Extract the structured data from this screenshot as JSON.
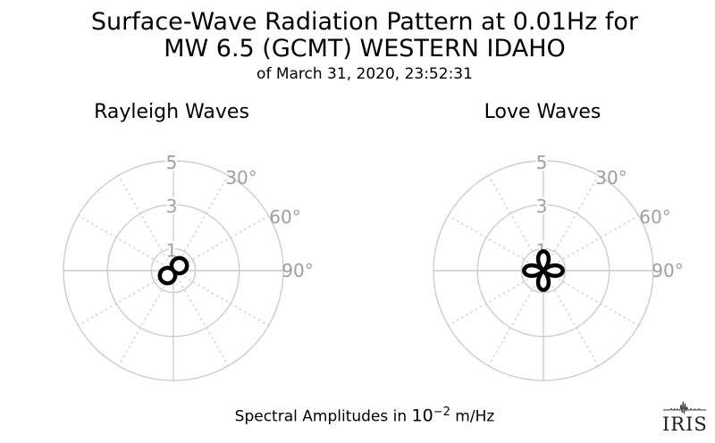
{
  "title": {
    "line1": "Surface-Wave Radiation Pattern at 0.01Hz for",
    "line2": "MW 6.5 (GCMT) WESTERN IDAHO",
    "subtitle": "of March 31, 2020, 23:52:31"
  },
  "caption": {
    "prefix": "Spectral Amplitudes in ",
    "base": "10",
    "exponent": "−2",
    "suffix": " m/Hz"
  },
  "logo": {
    "text": "IRIS"
  },
  "colors": {
    "grid": "#cccccc",
    "axis_labels": "#9e9e9e",
    "pattern": "#000000",
    "text": "#000000",
    "logo": "#1c1c1c"
  },
  "chart_data": [
    {
      "type": "polar",
      "title": "Rayleigh Waves",
      "r_ticks": [
        1,
        3,
        5
      ],
      "r_tick_labels": [
        "1",
        "3",
        "5"
      ],
      "r_max": 5,
      "angle_ticks_deg": [
        30,
        60,
        90
      ],
      "angle_tick_labels": [
        "30°",
        "60°",
        "90°"
      ],
      "spoke_interval_deg": 30,
      "grid": "on",
      "pattern": {
        "shape": "rose",
        "lobes": 2,
        "lobe_azimuth_deg": 50,
        "peak_amplitude": 0.7,
        "amplitude_units": "10^-2 m/Hz"
      }
    },
    {
      "type": "polar",
      "title": "Love Waves",
      "r_ticks": [
        1,
        3,
        5
      ],
      "r_tick_labels": [
        "1",
        "3",
        "5"
      ],
      "r_max": 5,
      "angle_ticks_deg": [
        30,
        60,
        90
      ],
      "angle_tick_labels": [
        "30°",
        "60°",
        "90°"
      ],
      "spoke_interval_deg": 30,
      "grid": "on",
      "pattern": {
        "shape": "rose",
        "lobes": 4,
        "lobe_azimuth_deg": 0,
        "peak_amplitude": 0.88,
        "amplitude_units": "10^-2 m/Hz"
      }
    }
  ]
}
